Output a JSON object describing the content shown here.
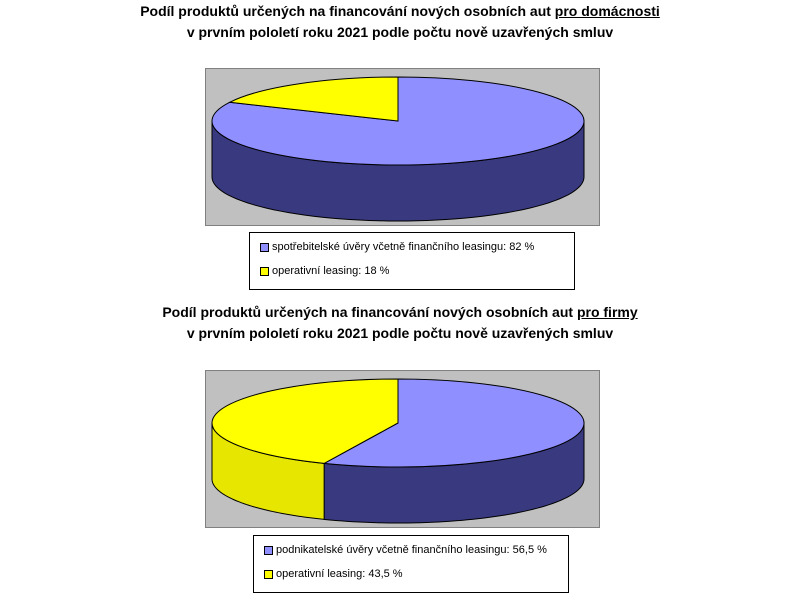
{
  "chart_data": [
    {
      "type": "pie",
      "title_line1_prefix": "Podíl produktů určených na financování nových osobních aut ",
      "title_line1_emph": "pro domácnosti",
      "title_line2": "v prvním pololetí roku 2021 podle počtu nově uzavřených smluv",
      "style": "3d",
      "slices": [
        {
          "label": "spotřebitelské úvěry včetně finančního leasingu: 82 %",
          "value": 82,
          "color": "#8f8fff",
          "side_color": "#393980"
        },
        {
          "label": "operativní leasing: 18 %",
          "value": 18,
          "color": "#ffff00",
          "side_color": "#e6e600"
        }
      ],
      "legend_placement": "bottom"
    },
    {
      "type": "pie",
      "title_line1_prefix": "Podíl produktů určených na financování nových osobních aut ",
      "title_line1_emph": "pro firmy",
      "title_line2": "v prvním pololetí roku 2021 podle počtu nově uzavřených smluv",
      "style": "3d",
      "slices": [
        {
          "label": "podnikatelské úvěry včetně finančního leasingu: 56,5 %",
          "value": 56.5,
          "color": "#8f8fff",
          "side_color": "#393980"
        },
        {
          "label": "operativní leasing: 43,5 %",
          "value": 43.5,
          "color": "#ffff00",
          "side_color": "#e6e600"
        }
      ],
      "legend_placement": "bottom"
    }
  ]
}
